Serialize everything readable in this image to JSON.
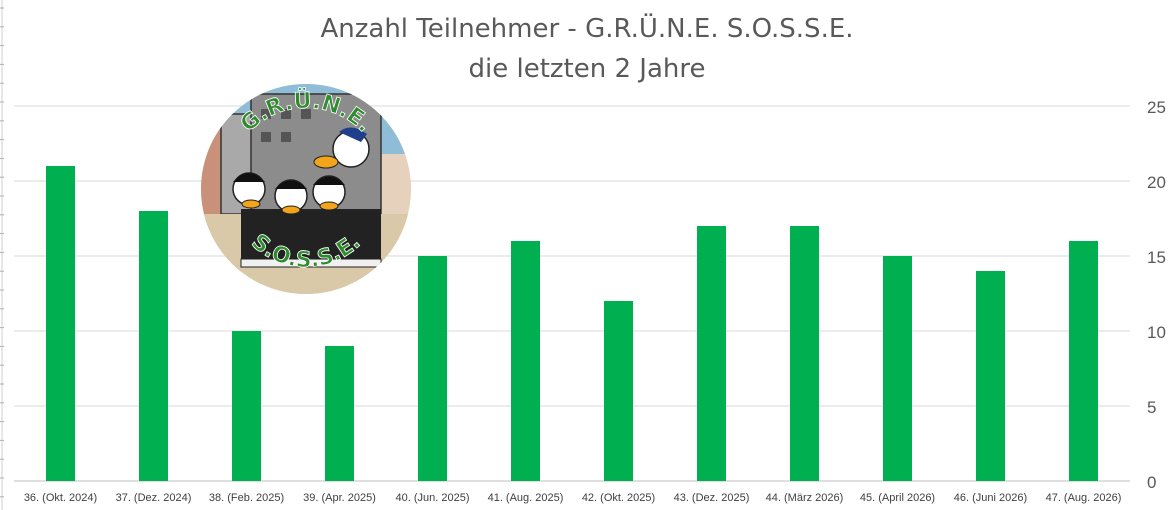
{
  "chart_data": {
    "type": "bar",
    "title": [
      "Anzahl Teilnehmer - G.R.Ü.N.E. S.O.S.S.E.",
      "die letzten 2 Jahre"
    ],
    "categories": [
      "36. (Okt. 2024)",
      "37. (Dez. 2024)",
      "38. (Feb. 2025)",
      "39. (Apr. 2025)",
      "40. (Jun. 2025)",
      "41. (Aug. 2025)",
      "42. (Okt. 2025)",
      "43. (Dez. 2025)",
      "44. (März 2026)",
      "45. (April 2026)",
      "46. (Juni 2026)",
      "47. (Aug. 2026)"
    ],
    "values": [
      21,
      18,
      10,
      9,
      15,
      16,
      12,
      17,
      17,
      15,
      14,
      16
    ],
    "ylim": [
      0,
      25
    ],
    "yticks": [
      0,
      5,
      10,
      15,
      20,
      25
    ],
    "yaxis_side": "right",
    "grid": true,
    "bar_color": "#00b050"
  },
  "logo": {
    "top_text": "G.R.Ü.N.E.",
    "bottom_text": "S.O.S.S.E."
  }
}
